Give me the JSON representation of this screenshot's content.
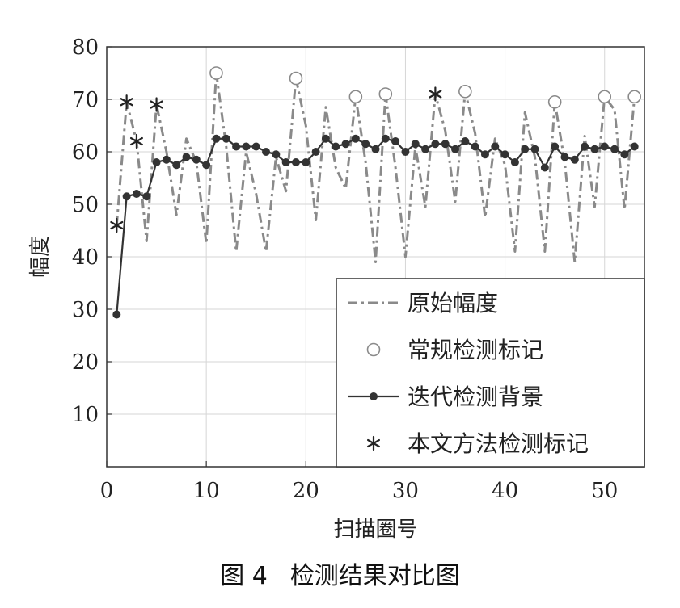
{
  "chart_data": {
    "type": "line",
    "xlabel": "扫描圈号",
    "ylabel": "幅度",
    "xlim": [
      0,
      54
    ],
    "ylim": [
      0,
      80
    ],
    "xticks": [
      "0",
      "10",
      "20",
      "30",
      "40",
      "50"
    ],
    "yticks": [
      "10",
      "20",
      "30",
      "40",
      "50",
      "60",
      "70",
      "80"
    ],
    "grid": true,
    "legend_position": "bottom-right",
    "series": [
      {
        "name": "原始幅度",
        "style": "dash-dot",
        "color": "#8a8a8a",
        "x": [
          1,
          2,
          3,
          4,
          5,
          6,
          7,
          8,
          9,
          10,
          11,
          12,
          13,
          14,
          15,
          16,
          17,
          18,
          19,
          20,
          21,
          22,
          23,
          24,
          25,
          26,
          27,
          28,
          29,
          30,
          31,
          32,
          33,
          34,
          35,
          36,
          37,
          38,
          39,
          40,
          41,
          42,
          43,
          44,
          45,
          46,
          47,
          48,
          49,
          50,
          51,
          52,
          53
        ],
        "y": [
          46,
          69.5,
          62,
          43,
          69,
          60,
          48,
          62.5,
          58,
          42.5,
          75,
          61,
          41,
          60,
          52,
          41,
          59,
          52.5,
          74,
          65,
          47,
          68.5,
          57,
          53,
          70.5,
          58,
          39,
          71,
          57,
          40,
          61,
          49.5,
          71,
          64,
          50.5,
          71.5,
          63.5,
          47.5,
          62.5,
          57.5,
          41,
          67.5,
          59,
          41,
          69.5,
          58,
          39,
          63,
          49.5,
          70.5,
          68,
          49,
          70.5
        ]
      },
      {
        "name": "常规检测标记",
        "style": "circle-marker",
        "color": "#8a8a8a",
        "x": [
          11,
          19,
          25,
          28,
          36,
          45,
          50,
          53
        ],
        "y": [
          75,
          74,
          70.5,
          71,
          71.5,
          69.5,
          70.5,
          70.5
        ]
      },
      {
        "name": "迭代检测背景",
        "style": "line-dot",
        "color": "#333333",
        "x": [
          1,
          2,
          3,
          4,
          5,
          6,
          7,
          8,
          9,
          10,
          11,
          12,
          13,
          14,
          15,
          16,
          17,
          18,
          19,
          20,
          21,
          22,
          23,
          24,
          25,
          26,
          27,
          28,
          29,
          30,
          31,
          32,
          33,
          34,
          35,
          36,
          37,
          38,
          39,
          40,
          41,
          42,
          43,
          44,
          45,
          46,
          47,
          48,
          49,
          50,
          51,
          52,
          53
        ],
        "y": [
          29,
          51.5,
          52,
          51.5,
          58,
          58.5,
          57.5,
          59,
          58.5,
          57.5,
          62.5,
          62.5,
          61,
          61,
          61,
          60,
          59.5,
          58,
          58,
          58,
          60,
          62.5,
          61,
          61.5,
          62.5,
          61.5,
          60.5,
          62.5,
          62,
          60,
          61.5,
          60.5,
          61.5,
          61.5,
          60.5,
          62,
          61,
          59.5,
          61,
          59.5,
          58,
          60.5,
          60.5,
          57,
          61,
          59,
          58.5,
          61,
          60.5,
          61,
          60.5,
          59.5,
          61
        ]
      },
      {
        "name": "本文方法检测标记",
        "style": "asterisk-marker",
        "color": "#222222",
        "x": [
          1,
          2,
          3,
          5,
          33
        ],
        "y": [
          46,
          69.5,
          62,
          69,
          71
        ]
      }
    ]
  },
  "caption": {
    "figure_number": "图 4",
    "title": "检测结果对比图"
  }
}
